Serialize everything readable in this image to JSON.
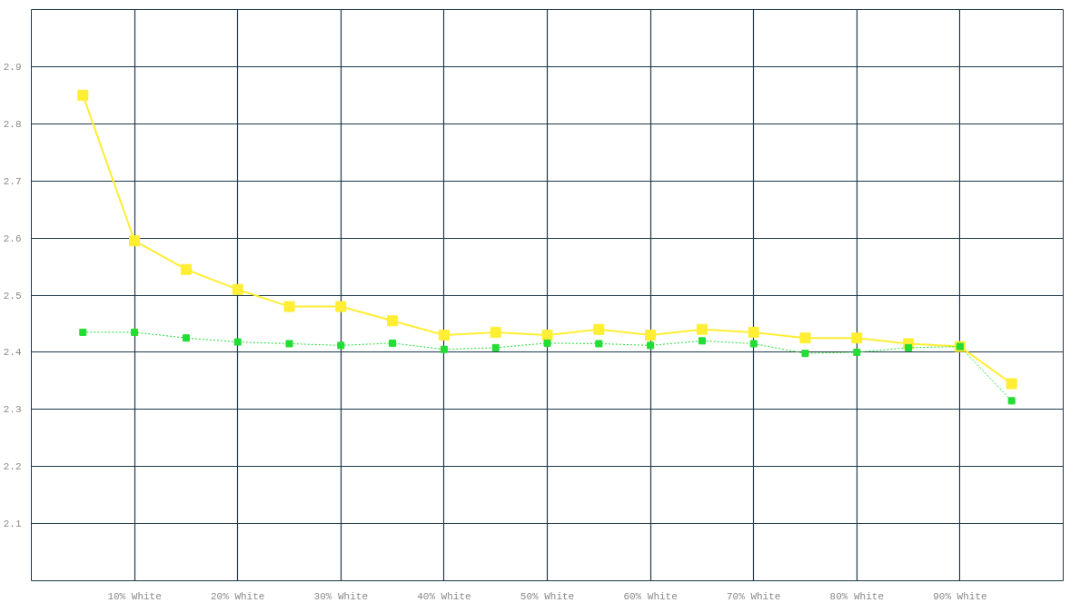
{
  "chart_data": {
    "type": "line",
    "x": [
      5,
      10,
      15,
      20,
      25,
      30,
      35,
      40,
      45,
      50,
      55,
      60,
      65,
      70,
      75,
      80,
      85,
      90,
      95
    ],
    "series": [
      {
        "color": "#ffee33",
        "line_style": "solid",
        "marker": "square",
        "values": [
          2.85,
          2.595,
          2.545,
          2.51,
          2.48,
          2.48,
          2.455,
          2.43,
          2.435,
          2.43,
          2.44,
          2.43,
          2.44,
          2.435,
          2.425,
          2.425,
          2.415,
          2.41,
          2.345
        ]
      },
      {
        "color": "#22dd33",
        "line_style": "dotted",
        "marker": "square",
        "values": [
          2.435,
          2.435,
          2.425,
          2.418,
          2.415,
          2.412,
          2.416,
          2.405,
          2.408,
          2.416,
          2.415,
          2.412,
          2.42,
          2.415,
          2.398,
          2.4,
          2.408,
          2.41,
          2.315
        ]
      }
    ],
    "xlim": [
      0,
      100
    ],
    "xticks": [
      {
        "value": 10,
        "label": "10% White"
      },
      {
        "value": 20,
        "label": "20% White"
      },
      {
        "value": 30,
        "label": "30% White"
      },
      {
        "value": 40,
        "label": "40% White"
      },
      {
        "value": 50,
        "label": "50% White"
      },
      {
        "value": 60,
        "label": "60% White"
      },
      {
        "value": 70,
        "label": "70% White"
      },
      {
        "value": 80,
        "label": "80% White"
      },
      {
        "value": 90,
        "label": "90% White"
      }
    ],
    "ylim": [
      2.0,
      3.0
    ],
    "yticks": [
      2.1,
      2.2,
      2.3,
      2.4,
      2.5,
      2.6,
      2.7,
      2.8,
      2.9
    ],
    "grid": true
  }
}
